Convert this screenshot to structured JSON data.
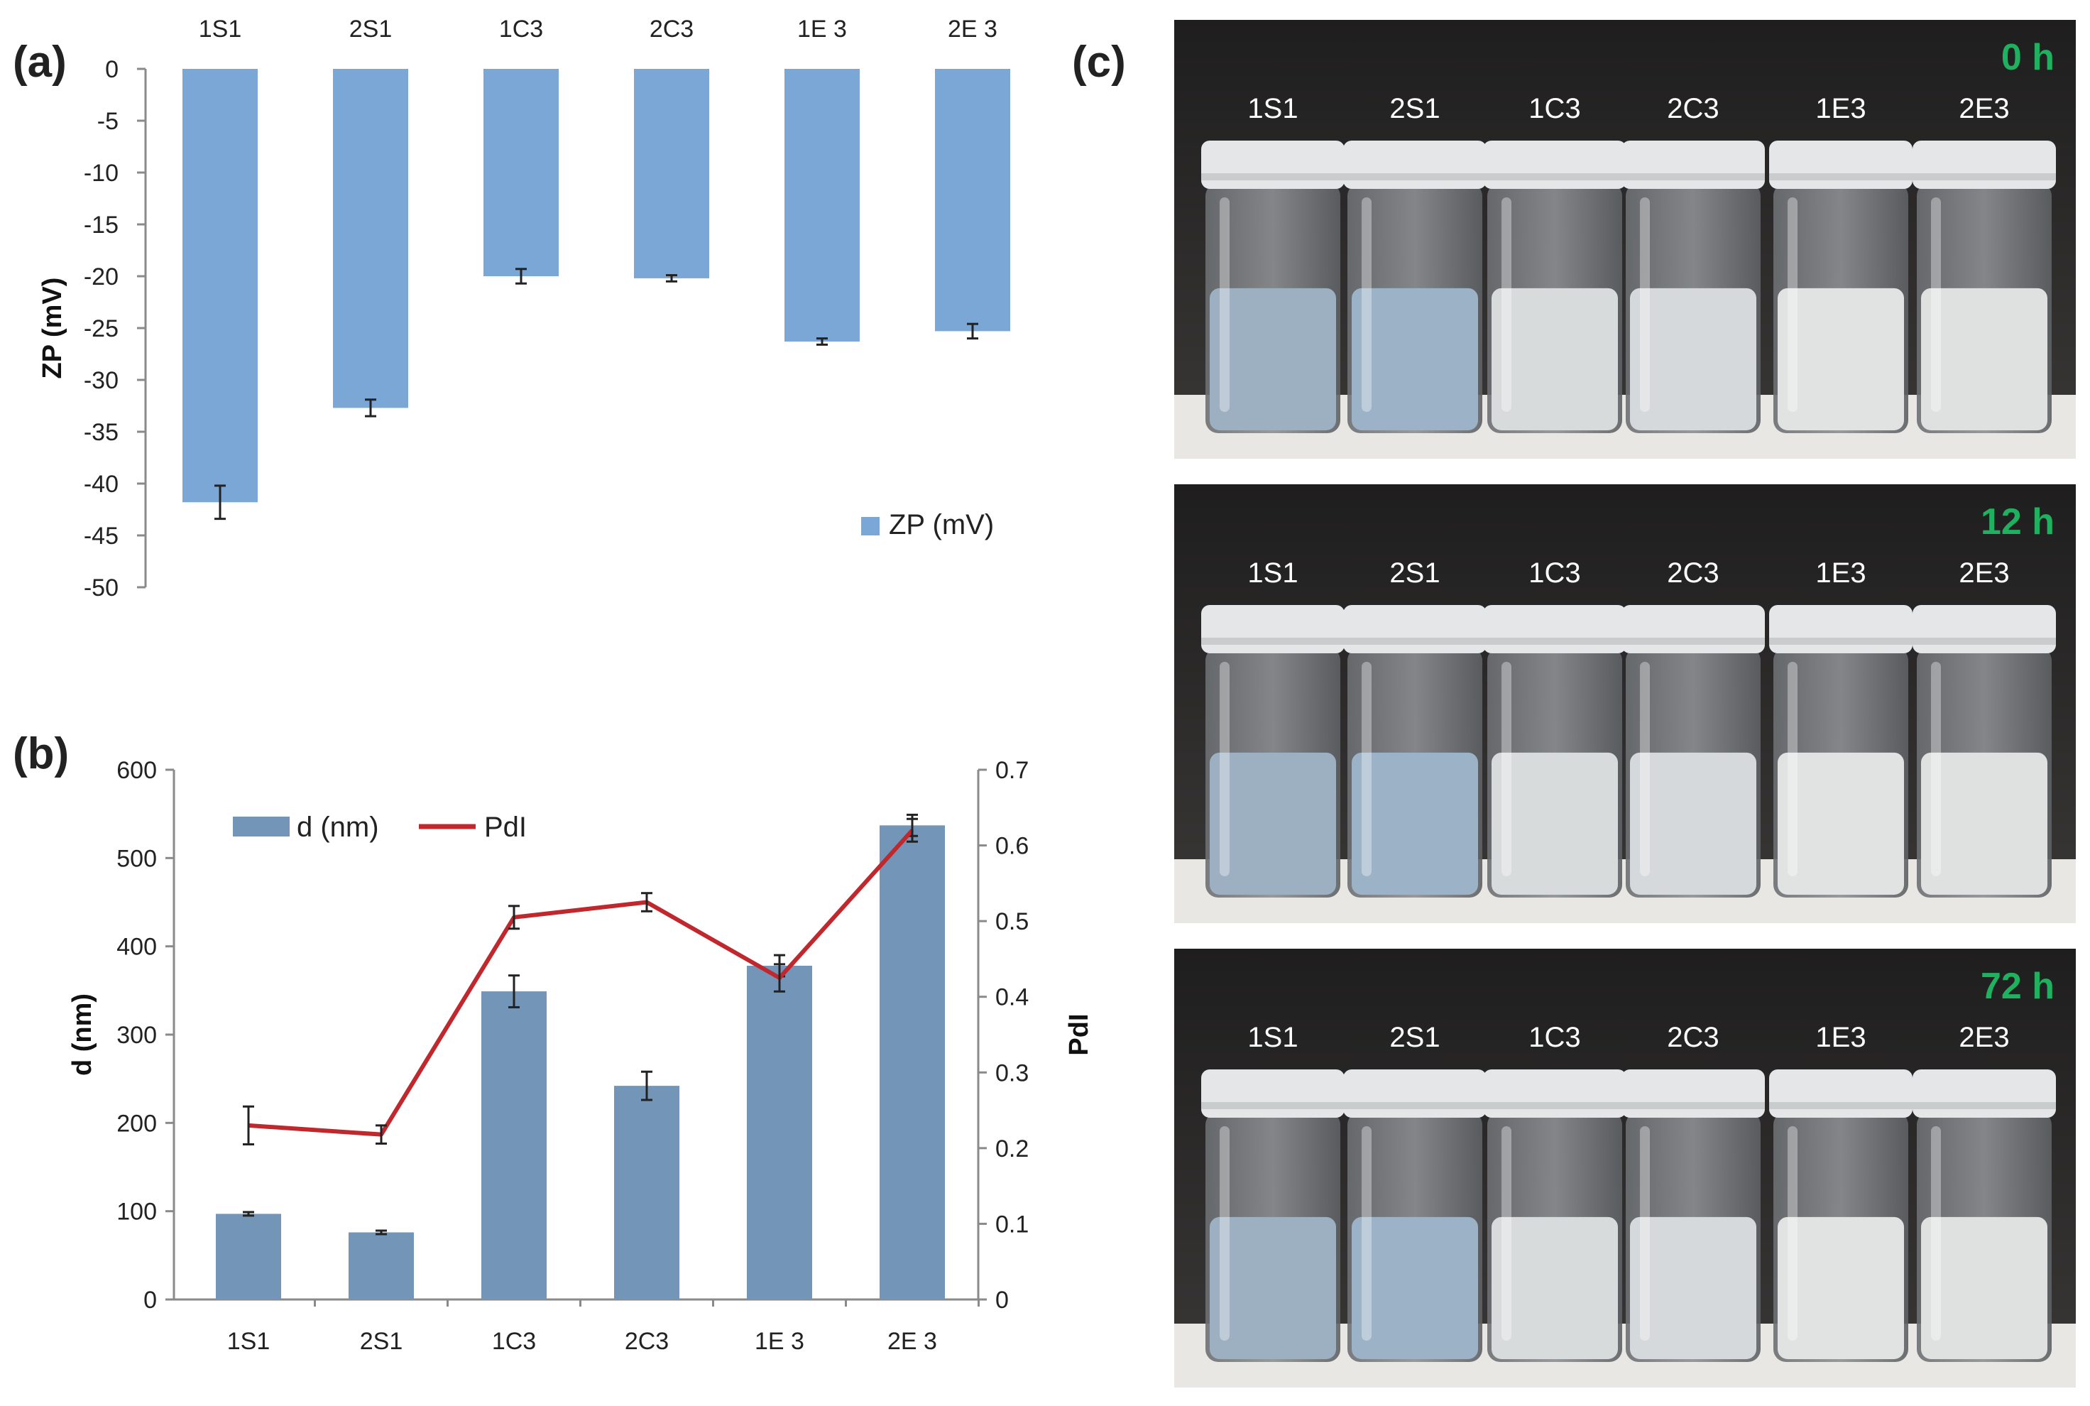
{
  "panels": {
    "a": "(a)",
    "b": "(b)",
    "c": "(c)"
  },
  "colors": {
    "zp_bar": "#7ba7d7",
    "d_bar": "#7395b8",
    "pdi_line": "#c0282d",
    "time_label": "#1fb060",
    "photo_bg": "#2b2a2a",
    "photo_shelf": "#e9e7e3"
  },
  "chart_data": [
    {
      "id": "a",
      "type": "bar",
      "categories": [
        "1S1",
        "2S1",
        "1C3",
        "2C3",
        "1E 3",
        "2E 3"
      ],
      "series": [
        {
          "name": "ZP (mV)",
          "values": [
            -41.8,
            -32.7,
            -20.0,
            -20.2,
            -26.3,
            -25.3
          ],
          "errors": [
            1.6,
            0.8,
            0.7,
            0.3,
            0.3,
            0.7
          ]
        }
      ],
      "ylabel": "ZP (mV)",
      "ylim": [
        -50,
        0
      ],
      "yticks": [
        0,
        -5,
        -10,
        -15,
        -20,
        -25,
        -30,
        -35,
        -40,
        -45,
        -50
      ],
      "xaxis_position": "top",
      "legend": {
        "position": "bottom-right",
        "label": "ZP (mV)"
      }
    },
    {
      "id": "b",
      "type": "bar",
      "categories": [
        "1S1",
        "2S1",
        "1C3",
        "2C3",
        "1E 3",
        "2E 3"
      ],
      "series": [
        {
          "name": "d (nm)",
          "kind": "bar",
          "axis": "left",
          "values": [
            97,
            76,
            349,
            242,
            378,
            537
          ],
          "errors": [
            2,
            2,
            18,
            16,
            12,
            12
          ]
        },
        {
          "name": "PdI",
          "kind": "line",
          "axis": "right",
          "values": [
            0.23,
            0.218,
            0.505,
            0.525,
            0.425,
            0.62
          ],
          "errors": [
            0.025,
            0.012,
            0.015,
            0.012,
            0.018,
            0.015
          ]
        }
      ],
      "ylabel": "d (nm)",
      "ylim": [
        0,
        600
      ],
      "yticks": [
        0,
        100,
        200,
        300,
        400,
        500,
        600
      ],
      "y2label": "PdI",
      "y2lim": [
        0,
        0.7
      ],
      "y2ticks": [
        "0",
        "0.1",
        "0.2",
        "0.3",
        "0.4",
        "0.5",
        "0.6",
        "0.7"
      ],
      "legend": {
        "position": "top-left"
      }
    }
  ],
  "photos": [
    {
      "time": "0 h",
      "labels": [
        "1S1",
        "2S1",
        "1C3",
        "2C3",
        "1E3",
        "2E3"
      ]
    },
    {
      "time": "12 h",
      "labels": [
        "1S1",
        "2S1",
        "1C3",
        "2C3",
        "1E3",
        "2E3"
      ]
    },
    {
      "time": "72 h",
      "labels": [
        "1S1",
        "2S1",
        "1C3",
        "2C3",
        "1E3",
        "2E3"
      ]
    }
  ]
}
